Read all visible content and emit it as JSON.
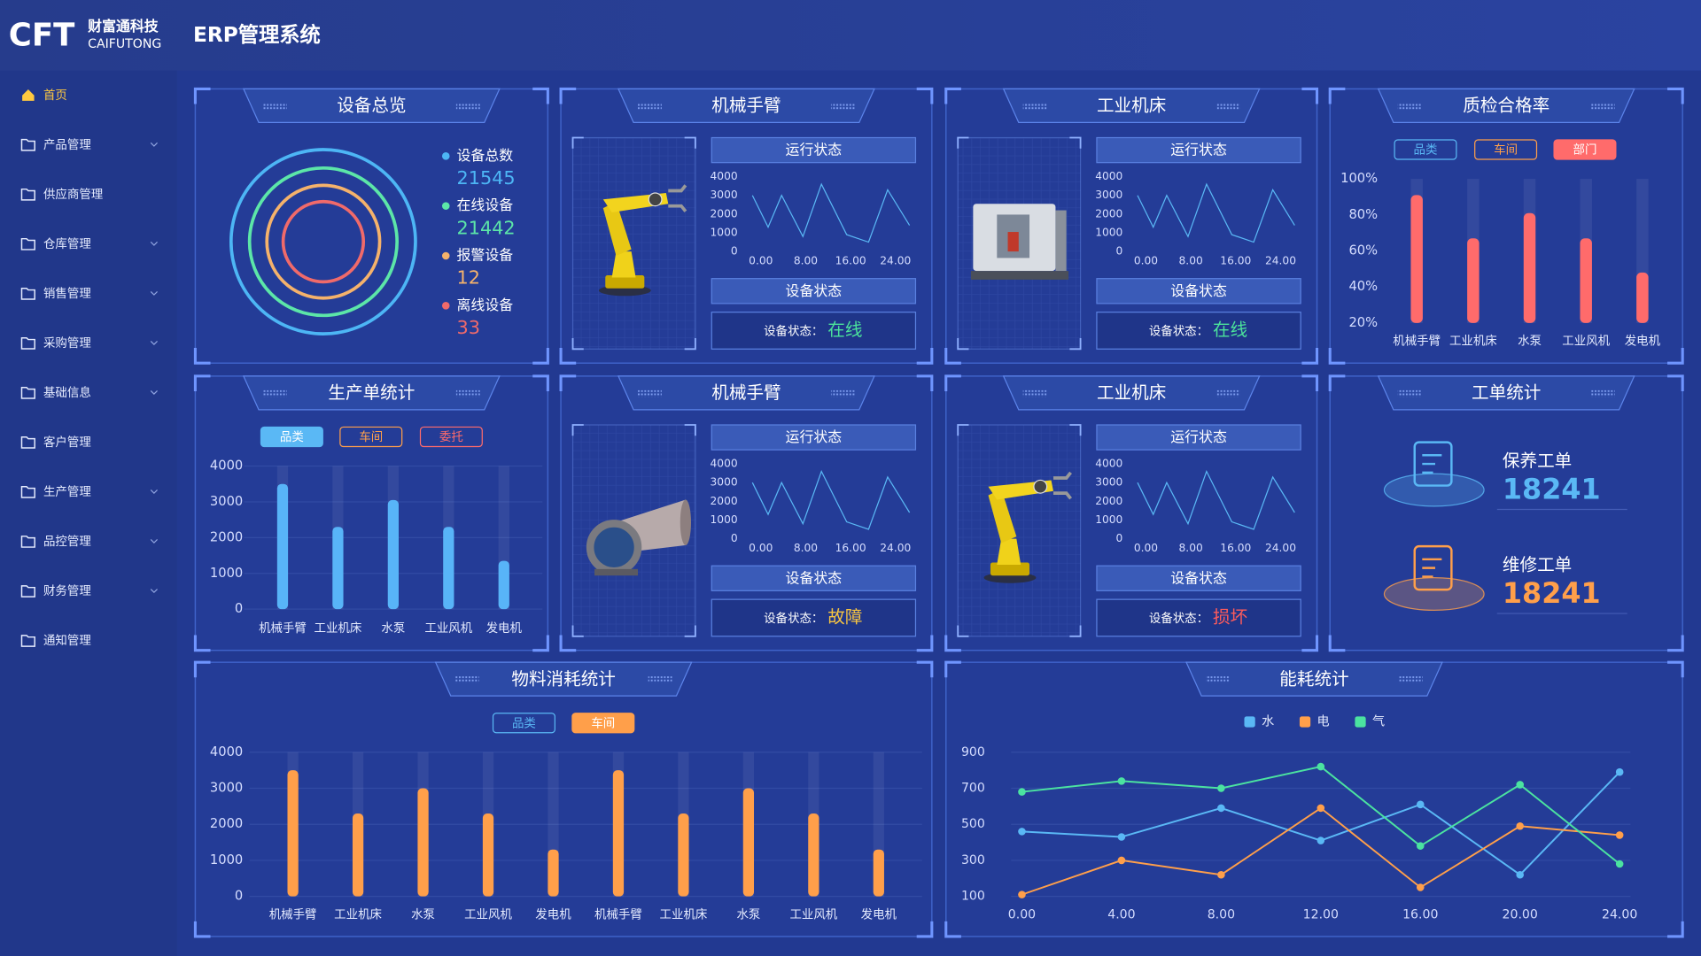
{
  "header": {
    "logo": "CFT",
    "company": "财富通科技",
    "company_en": "CAIFUTONG",
    "title": "ERP管理系统"
  },
  "menu": [
    {
      "label": "首页",
      "active": true
    },
    {
      "label": "产品管理",
      "expandable": true
    },
    {
      "label": "供应商管理"
    },
    {
      "label": "仓库管理",
      "expandable": true
    },
    {
      "label": "销售管理",
      "expandable": true
    },
    {
      "label": "采购管理",
      "expandable": true
    },
    {
      "label": "基础信息",
      "expandable": true
    },
    {
      "label": "客户管理"
    },
    {
      "label": "生产管理",
      "expandable": true
    },
    {
      "label": "品控管理",
      "expandable": true
    },
    {
      "label": "财务管理",
      "expandable": true
    },
    {
      "label": "通知管理"
    }
  ],
  "panels": [
    {
      "title": "设备总览",
      "items": [
        {
          "label": "设备总数",
          "value": 21545,
          "color": "#4db6f5"
        },
        {
          "label": "在线设备",
          "value": 21442,
          "color": "#5ce6a8"
        },
        {
          "label": "报警设备",
          "value": 12,
          "color": "#f5b26b"
        },
        {
          "label": "离线设备",
          "value": 33,
          "color": "#f06a6a"
        }
      ]
    },
    {
      "title": "机械手臂",
      "run_label": "运行状态",
      "status_heading": "设备状态",
      "status_label": "设备状态：",
      "status": "在线",
      "status_color": "#4be39b",
      "chart_data": {
        "type": "line",
        "x": [
          -1.5,
          1.3,
          3.7,
          7.5,
          10.8,
          15.3,
          19.2,
          22.6,
          26.5
        ],
        "values": [
          3000,
          1300,
          3000,
          800,
          3600,
          900,
          500,
          3300,
          1400
        ],
        "color": "#5ab8f5",
        "xlim": [
          -2,
          27
        ],
        "xticks": [
          {
            "value": 0,
            "label": "0.00"
          },
          {
            "value": 8,
            "label": "8.00"
          },
          {
            "value": 16,
            "label": "16.00"
          },
          {
            "value": 24,
            "label": "24.00"
          }
        ],
        "ylim": [
          0,
          4000
        ],
        "yticks": [
          0,
          1000,
          2000,
          3000,
          4000
        ]
      }
    },
    {
      "title": "工业机床",
      "run_label": "运行状态",
      "status_heading": "设备状态",
      "status_label": "设备状态：",
      "status": "在线",
      "status_color": "#4be39b",
      "chart_data": {
        "type": "line",
        "x": [
          -1.5,
          1.3,
          3.7,
          7.5,
          10.8,
          15.3,
          19.2,
          22.6,
          26.5
        ],
        "values": [
          3000,
          1300,
          3000,
          800,
          3600,
          900,
          500,
          3300,
          1400
        ],
        "color": "#5ab8f5",
        "xlim": [
          -2,
          27
        ],
        "xticks": [
          {
            "value": 0,
            "label": "0.00"
          },
          {
            "value": 8,
            "label": "8.00"
          },
          {
            "value": 16,
            "label": "16.00"
          },
          {
            "value": 24,
            "label": "24.00"
          }
        ],
        "ylim": [
          0,
          4000
        ],
        "yticks": [
          0,
          1000,
          2000,
          3000,
          4000
        ]
      }
    },
    {
      "title": "质检合格率",
      "buttons": [
        {
          "label": "品类",
          "color": "#5ab8f5"
        },
        {
          "label": "车间",
          "color": "#ff9f4a"
        },
        {
          "label": "部门",
          "color": "#ff6b6b",
          "active": true
        }
      ],
      "chart_data": {
        "type": "bar",
        "categories": [
          "机械手臂",
          "工业机床",
          "水泵",
          "工业风机",
          "发电机"
        ],
        "values": [
          91,
          67,
          81,
          67,
          48
        ],
        "color": "#ff6b6b",
        "ylim": [
          20,
          100
        ],
        "yticks": [
          {
            "value": 20,
            "label": "20%"
          },
          {
            "value": 40,
            "label": "40%"
          },
          {
            "value": 60,
            "label": "60%"
          },
          {
            "value": 80,
            "label": "80%"
          },
          {
            "value": 100,
            "label": "100%"
          }
        ]
      }
    },
    {
      "title": "生产单统计",
      "buttons": [
        {
          "label": "品类",
          "color": "#5ab8f5",
          "active": true
        },
        {
          "label": "车间",
          "color": "#ff9f4a"
        },
        {
          "label": "委托",
          "color": "#ff6b6b"
        }
      ],
      "chart_data": {
        "type": "bar",
        "categories": [
          "机械手臂",
          "工业机床",
          "水泵",
          "工业风机",
          "发电机"
        ],
        "values": [
          3500,
          2300,
          3050,
          2300,
          1350
        ],
        "color": "#58b4f8",
        "ylim": [
          0,
          4000
        ],
        "yticks": [
          0,
          1000,
          2000,
          3000,
          4000
        ],
        "grid": true
      }
    },
    {
      "title": "机械手臂",
      "run_label": "运行状态",
      "status_heading": "设备状态",
      "status_label": "设备状态：",
      "status": "故障",
      "status_color": "#f5c342",
      "chart_data": {
        "type": "line",
        "x": [
          -1.5,
          1.3,
          3.7,
          7.5,
          10.8,
          15.3,
          19.2,
          22.6,
          26.5
        ],
        "values": [
          3000,
          1300,
          3000,
          800,
          3600,
          900,
          500,
          3300,
          1400
        ],
        "color": "#5ab8f5",
        "xlim": [
          -2,
          27
        ],
        "xticks": [
          {
            "value": 0,
            "label": "0.00"
          },
          {
            "value": 8,
            "label": "8.00"
          },
          {
            "value": 16,
            "label": "16.00"
          },
          {
            "value": 24,
            "label": "24.00"
          }
        ],
        "ylim": [
          0,
          4000
        ],
        "yticks": [
          0,
          1000,
          2000,
          3000,
          4000
        ]
      }
    },
    {
      "title": "工业机床",
      "run_label": "运行状态",
      "status_heading": "设备状态",
      "status_label": "设备状态：",
      "status": "损坏",
      "status_color": "#ff5b5b",
      "chart_data": {
        "type": "line",
        "x": [
          -1.5,
          1.3,
          3.7,
          7.5,
          10.8,
          15.3,
          19.2,
          22.6,
          26.5
        ],
        "values": [
          3000,
          1300,
          3000,
          800,
          3600,
          900,
          500,
          3300,
          1400
        ],
        "color": "#5ab8f5",
        "xlim": [
          -2,
          27
        ],
        "xticks": [
          {
            "value": 0,
            "label": "0.00"
          },
          {
            "value": 8,
            "label": "8.00"
          },
          {
            "value": 16,
            "label": "16.00"
          },
          {
            "value": 24,
            "label": "24.00"
          }
        ],
        "ylim": [
          0,
          4000
        ],
        "yticks": [
          0,
          1000,
          2000,
          3000,
          4000
        ]
      }
    },
    {
      "title": "工单统计",
      "items": [
        {
          "label": "保养工单",
          "value": 18241,
          "color": "#5ab8f5"
        },
        {
          "label": "维修工单",
          "value": 18241,
          "color": "#ff9f4a"
        }
      ]
    },
    {
      "title": "物料消耗统计",
      "buttons": [
        {
          "label": "品类",
          "color": "#5ab8f5"
        },
        {
          "label": "车间",
          "color": "#ff9f4a",
          "active": true
        }
      ],
      "chart_data": {
        "type": "bar",
        "categories": [
          "机械手臂",
          "工业机床",
          "水泵",
          "工业风机",
          "发电机",
          "机械手臂",
          "工业机床",
          "水泵",
          "工业风机",
          "发电机"
        ],
        "values": [
          3500,
          2300,
          3000,
          2300,
          1300,
          3500,
          2300,
          3000,
          2300,
          1300
        ],
        "color": "#ff9f4a",
        "ylim": [
          0,
          4000
        ],
        "yticks": [
          0,
          1000,
          2000,
          3000,
          4000
        ],
        "grid": true
      }
    },
    {
      "title": "能耗统计",
      "chart_data": {
        "type": "line",
        "x": [
          0,
          4,
          8,
          12,
          16,
          20,
          24
        ],
        "xlim": [
          0,
          24
        ],
        "xticks": [
          {
            "value": 0,
            "label": "0.00"
          },
          {
            "value": 4,
            "label": "4.00"
          },
          {
            "value": 8,
            "label": "8.00"
          },
          {
            "value": 12,
            "label": "12.00"
          },
          {
            "value": 16,
            "label": "16.00"
          },
          {
            "value": 20,
            "label": "20.00"
          },
          {
            "value": 24,
            "label": "24.00"
          }
        ],
        "ylim": [
          100,
          900
        ],
        "yticks": [
          100,
          300,
          500,
          700,
          900
        ],
        "grid": true,
        "legend": "top",
        "series": [
          {
            "name": "水",
            "color": "#5ab8f5",
            "values": [
              460,
              430,
              590,
              410,
              610,
              220,
              790
            ]
          },
          {
            "name": "电",
            "color": "#ff9f4a",
            "values": [
              110,
              300,
              220,
              590,
              150,
              490,
              440
            ]
          },
          {
            "name": "气",
            "color": "#4be3a0",
            "values": [
              680,
              740,
              700,
              820,
              380,
              720,
              280
            ]
          }
        ]
      }
    }
  ]
}
